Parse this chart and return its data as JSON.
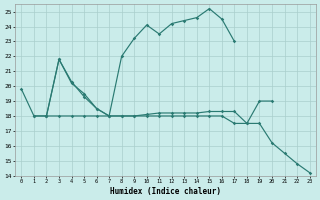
{
  "color": "#2a7a72",
  "bg_color": "#caecea",
  "grid_color": "#aacfcc",
  "xlabel": "Humidex (Indice chaleur)",
  "ylim": [
    14,
    25.5
  ],
  "xlim": [
    -0.5,
    23.5
  ],
  "yticks": [
    14,
    15,
    16,
    17,
    18,
    19,
    20,
    21,
    22,
    23,
    24,
    25
  ],
  "xticks": [
    0,
    1,
    2,
    3,
    4,
    5,
    6,
    7,
    8,
    9,
    10,
    11,
    12,
    13,
    14,
    15,
    16,
    17,
    18,
    19,
    20,
    21,
    22,
    23
  ],
  "line_A_x": [
    2,
    3,
    4,
    5,
    6,
    7,
    8,
    9,
    10,
    11,
    12,
    13,
    14,
    15,
    16,
    17
  ],
  "line_A_y": [
    18.0,
    21.8,
    20.2,
    19.5,
    18.5,
    18.0,
    22.0,
    23.2,
    24.1,
    23.5,
    24.2,
    24.4,
    24.6,
    25.2,
    24.5,
    23.0
  ],
  "line_B_x": [
    0,
    1,
    2,
    3,
    4,
    5,
    6,
    7,
    8,
    9,
    10,
    11,
    12,
    13,
    14,
    15,
    16,
    17,
    18,
    19,
    20
  ],
  "line_B_y": [
    19.8,
    18.0,
    18.0,
    21.8,
    20.3,
    19.3,
    18.5,
    18.0,
    18.0,
    18.0,
    18.1,
    18.2,
    18.2,
    18.2,
    18.2,
    18.3,
    18.3,
    18.3,
    17.5,
    19.0,
    19.0
  ],
  "line_C_x": [
    1,
    2,
    3,
    4,
    5,
    6,
    7,
    8,
    9,
    10,
    11,
    12,
    13,
    14,
    15,
    16,
    17,
    18,
    19,
    20,
    21,
    22,
    23
  ],
  "line_C_y": [
    18.0,
    18.0,
    18.0,
    18.0,
    18.0,
    18.0,
    18.0,
    18.0,
    18.0,
    18.0,
    18.0,
    18.0,
    18.0,
    18.0,
    18.0,
    18.0,
    17.5,
    17.5,
    17.5,
    16.2,
    15.5,
    14.8,
    14.2
  ]
}
